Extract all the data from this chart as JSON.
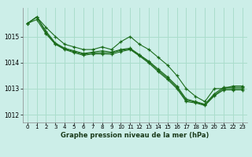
{
  "title": "Graphe pression niveau de la mer (hPa)",
  "background_color": "#cceee8",
  "grid_color": "#aaddcc",
  "line_color": "#1a6b1a",
  "marker_color": "#1a6b1a",
  "xlim": [
    -0.5,
    23.5
  ],
  "ylim": [
    1011.7,
    1016.1
  ],
  "yticks": [
    1012,
    1013,
    1014,
    1015
  ],
  "xticks": [
    0,
    1,
    2,
    3,
    4,
    5,
    6,
    7,
    8,
    9,
    10,
    11,
    12,
    13,
    14,
    15,
    16,
    17,
    18,
    19,
    20,
    21,
    22,
    23
  ],
  "series": [
    [
      1015.5,
      1015.75,
      1015.35,
      1015.0,
      1014.7,
      1014.6,
      1014.5,
      1014.5,
      1014.6,
      1014.5,
      1014.8,
      1015.0,
      1014.7,
      1014.5,
      1014.2,
      1013.9,
      1013.5,
      1013.0,
      1012.7,
      1012.5,
      1013.0,
      1013.0,
      1013.1,
      1013.1
    ],
    [
      1015.5,
      1015.75,
      1015.2,
      1014.75,
      1014.55,
      1014.45,
      1014.35,
      1014.4,
      1014.45,
      1014.4,
      1014.5,
      1014.55,
      1014.3,
      1014.05,
      1013.75,
      1013.45,
      1013.1,
      1012.6,
      1012.5,
      1012.4,
      1012.8,
      1013.05,
      1013.05,
      1013.05
    ],
    [
      1015.5,
      1015.75,
      1015.15,
      1014.72,
      1014.52,
      1014.42,
      1014.32,
      1014.37,
      1014.38,
      1014.37,
      1014.47,
      1014.52,
      1014.28,
      1014.02,
      1013.7,
      1013.4,
      1013.05,
      1012.55,
      1012.48,
      1012.38,
      1012.75,
      1013.0,
      1013.0,
      1013.0
    ],
    [
      1015.5,
      1015.65,
      1015.1,
      1014.7,
      1014.5,
      1014.38,
      1014.28,
      1014.33,
      1014.33,
      1014.32,
      1014.42,
      1014.5,
      1014.25,
      1013.98,
      1013.65,
      1013.35,
      1013.0,
      1012.5,
      1012.45,
      1012.35,
      1012.72,
      1012.95,
      1012.95,
      1012.95
    ]
  ]
}
